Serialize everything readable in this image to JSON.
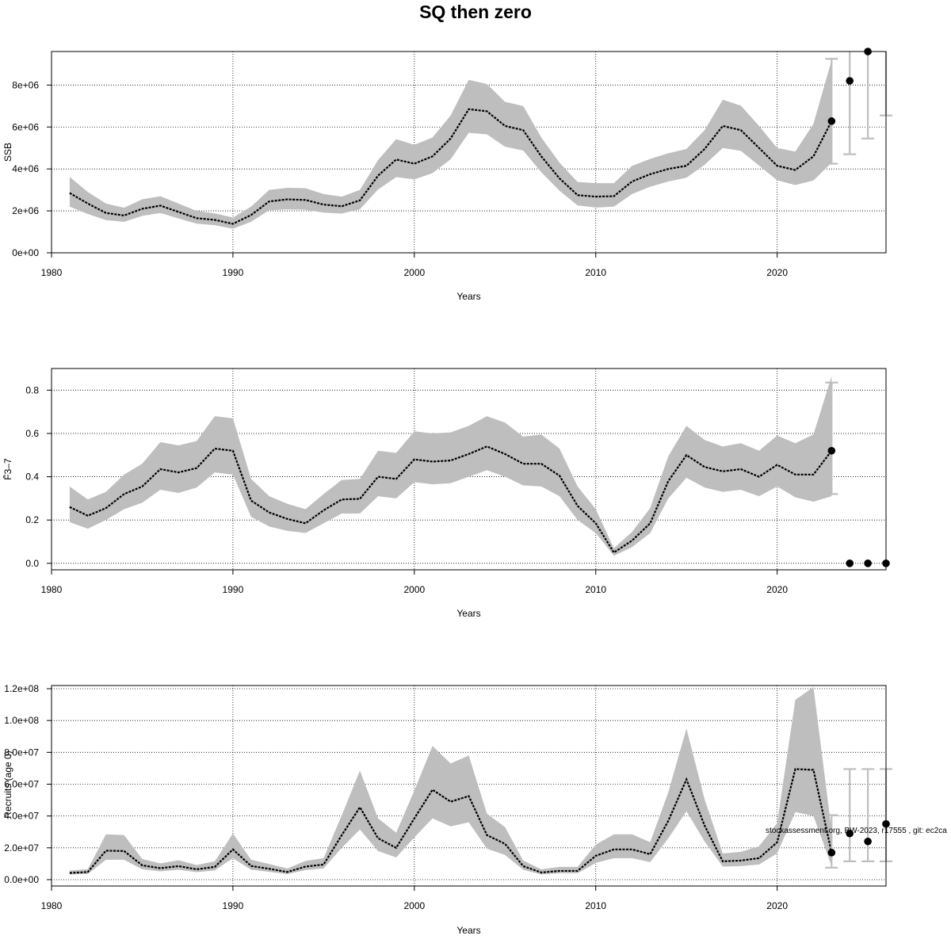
{
  "title": "SQ then zero",
  "footnote": "stockassessment.org, BW-2023, r17555 , git: ec2ca",
  "colors": {
    "band": "#bebebe",
    "line": "#000000",
    "grid": "#000000",
    "forecast_bar": "#bebebe",
    "point": "#000000"
  },
  "chart_data": [
    {
      "type": "line",
      "ylabel": "SSB",
      "xlabel": "Years",
      "xlim": [
        1980,
        2026
      ],
      "ylim": [
        0,
        9600000
      ],
      "x_ticks": [
        1980,
        1990,
        2000,
        2010,
        2020
      ],
      "y_ticks": [
        0,
        2000000,
        4000000,
        6000000,
        8000000
      ],
      "y_tick_labels": [
        "0e+00",
        "2e+06",
        "4e+06",
        "6e+06",
        "8e+06"
      ],
      "grid": true,
      "series": [
        {
          "x": [
            1981,
            1982,
            1983,
            1984,
            1985,
            1986,
            1987,
            1988,
            1989,
            1990,
            1991,
            1992,
            1993,
            1994,
            1995,
            1996,
            1997,
            1998,
            1999,
            2000,
            2001,
            2002,
            2003,
            2004,
            2005,
            2006,
            2007,
            2008,
            2009,
            2010,
            2011,
            2012,
            2013,
            2014,
            2015,
            2016,
            2017,
            2018,
            2019,
            2020,
            2021,
            2022,
            2023
          ],
          "values": [
            2850000,
            2350000,
            1900000,
            1780000,
            2100000,
            2250000,
            1950000,
            1650000,
            1570000,
            1380000,
            1800000,
            2450000,
            2550000,
            2520000,
            2300000,
            2220000,
            2500000,
            3680000,
            4450000,
            4250000,
            4600000,
            5450000,
            6850000,
            6750000,
            6050000,
            5850000,
            4600000,
            3550000,
            2750000,
            2680000,
            2700000,
            3400000,
            3750000,
            4000000,
            4150000,
            4950000,
            6050000,
            5850000,
            5000000,
            4150000,
            3950000,
            4600000,
            6280000
          ],
          "lower": [
            2200000,
            1850000,
            1560000,
            1480000,
            1760000,
            1900000,
            1640000,
            1390000,
            1320000,
            1150000,
            1480000,
            2030000,
            2070000,
            2050000,
            1920000,
            1870000,
            2080000,
            3020000,
            3610000,
            3500000,
            3800000,
            4460000,
            5720000,
            5650000,
            5060000,
            4880000,
            3840000,
            2960000,
            2260000,
            2160000,
            2200000,
            2800000,
            3150000,
            3400000,
            3580000,
            4200000,
            5000000,
            4860000,
            4160000,
            3460000,
            3230000,
            3450000,
            4300000
          ],
          "upper": [
            3620000,
            2900000,
            2350000,
            2150000,
            2550000,
            2700000,
            2350000,
            2000000,
            1880000,
            1680000,
            2200000,
            3000000,
            3100000,
            3080000,
            2800000,
            2680000,
            3000000,
            4420000,
            5420000,
            5150000,
            5500000,
            6550000,
            8250000,
            8050000,
            7200000,
            7000000,
            5500000,
            4300000,
            3380000,
            3320000,
            3320000,
            4150000,
            4480000,
            4750000,
            4950000,
            5850000,
            7300000,
            7020000,
            6050000,
            5000000,
            4830000,
            6150000,
            9180000
          ]
        }
      ],
      "forecast": {
        "x": [
          2023,
          2024,
          2025,
          2026
        ],
        "values": [
          6280000,
          8200000,
          9600000,
          null
        ],
        "lower": [
          4250000,
          4700000,
          5450000,
          6550000
        ],
        "upper": [
          9250000,
          null,
          null,
          null
        ]
      }
    },
    {
      "type": "line",
      "ylabel": "F̄3–7",
      "xlabel": "Years",
      "xlim": [
        1980,
        2026
      ],
      "ylim": [
        -0.03,
        0.9
      ],
      "x_ticks": [
        1980,
        1990,
        2000,
        2010,
        2020
      ],
      "y_ticks": [
        0,
        0.2,
        0.4,
        0.6,
        0.8
      ],
      "y_tick_labels": [
        "0.0",
        "0.2",
        "0.4",
        "0.6",
        "0.8"
      ],
      "grid": true,
      "series": [
        {
          "x": [
            1981,
            1982,
            1983,
            1984,
            1985,
            1986,
            1987,
            1988,
            1989,
            1990,
            1991,
            1992,
            1993,
            1994,
            1995,
            1996,
            1997,
            1998,
            1999,
            2000,
            2001,
            2002,
            2003,
            2004,
            2005,
            2006,
            2007,
            2008,
            2009,
            2010,
            2011,
            2012,
            2013,
            2014,
            2015,
            2016,
            2017,
            2018,
            2019,
            2020,
            2021,
            2022,
            2023
          ],
          "values": [
            0.26,
            0.22,
            0.255,
            0.32,
            0.355,
            0.435,
            0.42,
            0.44,
            0.53,
            0.52,
            0.29,
            0.235,
            0.205,
            0.185,
            0.245,
            0.295,
            0.298,
            0.4,
            0.39,
            0.48,
            0.47,
            0.475,
            0.505,
            0.54,
            0.505,
            0.46,
            0.46,
            0.405,
            0.265,
            0.185,
            0.05,
            0.105,
            0.185,
            0.38,
            0.5,
            0.445,
            0.425,
            0.435,
            0.4,
            0.455,
            0.41,
            0.41,
            0.52
          ],
          "lower": [
            0.19,
            0.16,
            0.2,
            0.25,
            0.28,
            0.34,
            0.325,
            0.35,
            0.42,
            0.41,
            0.215,
            0.17,
            0.15,
            0.14,
            0.185,
            0.23,
            0.23,
            0.31,
            0.3,
            0.375,
            0.365,
            0.37,
            0.4,
            0.43,
            0.4,
            0.36,
            0.355,
            0.31,
            0.2,
            0.14,
            0.035,
            0.075,
            0.14,
            0.3,
            0.395,
            0.35,
            0.33,
            0.34,
            0.31,
            0.355,
            0.305,
            0.285,
            0.31
          ],
          "upper": [
            0.355,
            0.295,
            0.33,
            0.41,
            0.46,
            0.56,
            0.545,
            0.565,
            0.68,
            0.67,
            0.39,
            0.31,
            0.275,
            0.25,
            0.32,
            0.385,
            0.39,
            0.52,
            0.51,
            0.61,
            0.6,
            0.605,
            0.635,
            0.68,
            0.65,
            0.585,
            0.595,
            0.53,
            0.355,
            0.25,
            0.07,
            0.145,
            0.255,
            0.495,
            0.635,
            0.57,
            0.54,
            0.555,
            0.52,
            0.59,
            0.555,
            0.595,
            0.865
          ]
        }
      ],
      "forecast": {
        "x": [
          2023,
          2024,
          2025,
          2026
        ],
        "values": [
          0.52,
          0,
          0,
          0
        ],
        "lower": [
          0.32,
          null,
          null,
          null
        ],
        "upper": [
          0.835,
          null,
          null,
          null
        ]
      }
    },
    {
      "type": "line",
      "ylabel": "Recruits (age 0)",
      "xlabel": "Years",
      "xlim": [
        1980,
        2026
      ],
      "ylim": [
        -4000000,
        122000000
      ],
      "x_ticks": [
        1980,
        1990,
        2000,
        2010,
        2020
      ],
      "y_ticks": [
        0,
        20000000,
        40000000,
        60000000,
        80000000,
        100000000,
        120000000
      ],
      "y_tick_labels": [
        "0.0e+00",
        "2.0e+07",
        "4.0e+07",
        "6.0e+07",
        "8.0e+07",
        "1.0e+08",
        "1.2e+08"
      ],
      "grid": true,
      "series": [
        {
          "x": [
            1981,
            1982,
            1983,
            1984,
            1985,
            1986,
            1987,
            1988,
            1989,
            1990,
            1991,
            1992,
            1993,
            1994,
            1995,
            1996,
            1997,
            1998,
            1999,
            2000,
            2001,
            2002,
            2003,
            2004,
            2005,
            2006,
            2007,
            2008,
            2009,
            2010,
            2011,
            2012,
            2013,
            2014,
            2015,
            2016,
            2017,
            2018,
            2019,
            2020,
            2021,
            2022,
            2023
          ],
          "values": [
            4200000,
            4800000,
            18200000,
            18000000,
            9000000,
            7200000,
            8500000,
            6500000,
            8000000,
            19000000,
            8600000,
            6800000,
            4800000,
            8200000,
            9500000,
            28000000,
            45500000,
            26000000,
            20000000,
            38500000,
            56500000,
            49000000,
            52500000,
            28000000,
            22500000,
            8500000,
            4500000,
            5500000,
            5500000,
            15000000,
            19000000,
            19000000,
            16000000,
            37000000,
            63000000,
            34000000,
            11500000,
            12000000,
            13500000,
            23500000,
            69500000,
            69000000,
            17000000
          ],
          "lower": [
            3200000,
            3600000,
            12500000,
            12500000,
            6500000,
            5200000,
            6200000,
            4700000,
            5800000,
            13500000,
            6200000,
            4900000,
            3500000,
            6000000,
            7000000,
            20000000,
            31500000,
            18000000,
            14000000,
            26500000,
            38500000,
            33500000,
            36000000,
            19500000,
            15500000,
            6200000,
            3300000,
            4000000,
            4000000,
            10500000,
            13500000,
            13500000,
            11000000,
            26000000,
            43000000,
            24000000,
            8200000,
            8500000,
            9500000,
            16500000,
            42500000,
            40000000,
            8500000
          ],
          "upper": [
            5800000,
            6500000,
            28500000,
            28000000,
            13000000,
            10200000,
            12200000,
            9200000,
            11500000,
            29000000,
            12500000,
            9800000,
            7000000,
            11800000,
            13500000,
            40500000,
            68500000,
            38500000,
            29500000,
            56000000,
            84000000,
            73000000,
            78000000,
            41500000,
            33000000,
            12000000,
            6500000,
            8000000,
            8000000,
            22000000,
            28500000,
            28500000,
            23500000,
            55000000,
            95000000,
            50500000,
            16500000,
            17500000,
            21000000,
            35500000,
            113000000,
            121000000,
            31000000
          ]
        }
      ],
      "forecast": {
        "x": [
          2023,
          2024,
          2025,
          2026
        ],
        "values": [
          17000000,
          29000000,
          24000000,
          35000000
        ],
        "lower": [
          7500000,
          11500000,
          11500000,
          11500000
        ],
        "upper": [
          40500000,
          69500000,
          69500000,
          69500000
        ]
      }
    }
  ]
}
